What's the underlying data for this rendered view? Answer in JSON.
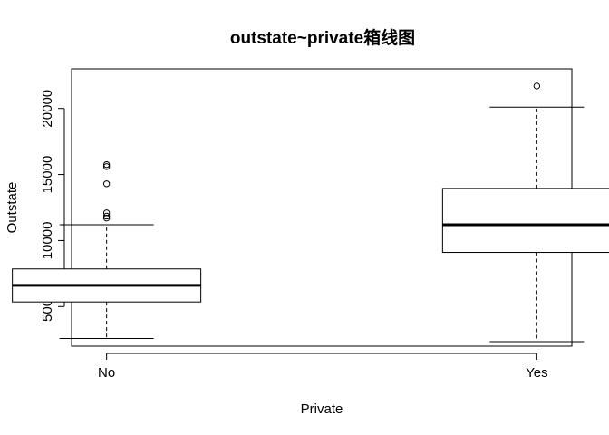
{
  "chart_data": {
    "type": "boxplot",
    "title": "outstate~private箱线图",
    "xlabel": "Private",
    "ylabel": "Outstate",
    "categories": [
      "No",
      "Yes"
    ],
    "yticks": [
      5000,
      10000,
      15000,
      20000
    ],
    "ylim": [
      2000,
      23000
    ],
    "boxes": [
      {
        "category": "No",
        "whisker_low": 2580,
        "q1": 5350,
        "median": 6610,
        "q3": 7850,
        "whisker_high": 11200,
        "outliers": [
          11700,
          11850,
          12100,
          14300,
          15600,
          15750
        ]
      },
      {
        "category": "Yes",
        "whisker_low": 2340,
        "q1": 9100,
        "median": 11200,
        "q3": 13950,
        "whisker_high": 20100,
        "outliers": [
          21700
        ]
      }
    ],
    "grid": false,
    "legend": "none"
  }
}
